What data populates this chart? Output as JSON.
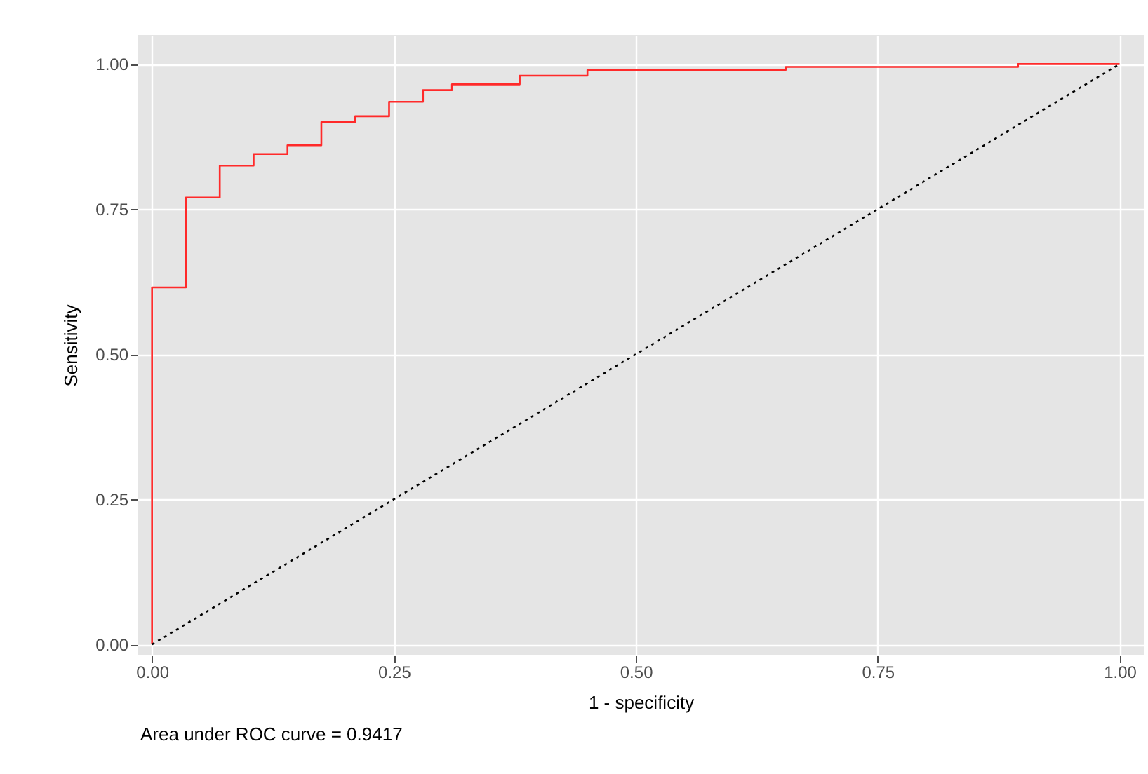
{
  "chart_data": {
    "type": "step",
    "xlabel": "1 - specificity",
    "ylabel": "Sensitivity",
    "xlim": [
      -0.015,
      1.025
    ],
    "ylim": [
      -0.018,
      1.05
    ],
    "xticks": [
      {
        "value": 0,
        "label": "0.00"
      },
      {
        "value": 0.25,
        "label": "0.25"
      },
      {
        "value": 0.5,
        "label": "0.50"
      },
      {
        "value": 0.75,
        "label": "0.75"
      },
      {
        "value": 1,
        "label": "1.00"
      }
    ],
    "yticks": [
      {
        "value": 0,
        "label": "0.00"
      },
      {
        "value": 0.25,
        "label": "0.25"
      },
      {
        "value": 0.5,
        "label": "0.50"
      },
      {
        "value": 0.75,
        "label": "0.75"
      },
      {
        "value": 1,
        "label": "1.00"
      }
    ],
    "grid": true,
    "series": [
      {
        "color": "#ff2a2a",
        "line_style": "solid",
        "x": [
          0,
          0,
          0.035,
          0.07,
          0.105,
          0.14,
          0.175,
          0.21,
          0.245,
          0.28,
          0.31,
          0.38,
          0.45,
          0.655,
          0.895,
          1.0
        ],
        "values": [
          0,
          0.615,
          0.77,
          0.825,
          0.845,
          0.86,
          0.9,
          0.91,
          0.935,
          0.955,
          0.965,
          0.98,
          0.99,
          0.995,
          1.0,
          1.0
        ]
      },
      {
        "type": "line",
        "color": "#000000",
        "line_style": "dotted",
        "x": [
          0,
          1
        ],
        "values": [
          0,
          1
        ]
      }
    ],
    "annotations": [
      "Area under ROC curve = 0.9417"
    ]
  }
}
